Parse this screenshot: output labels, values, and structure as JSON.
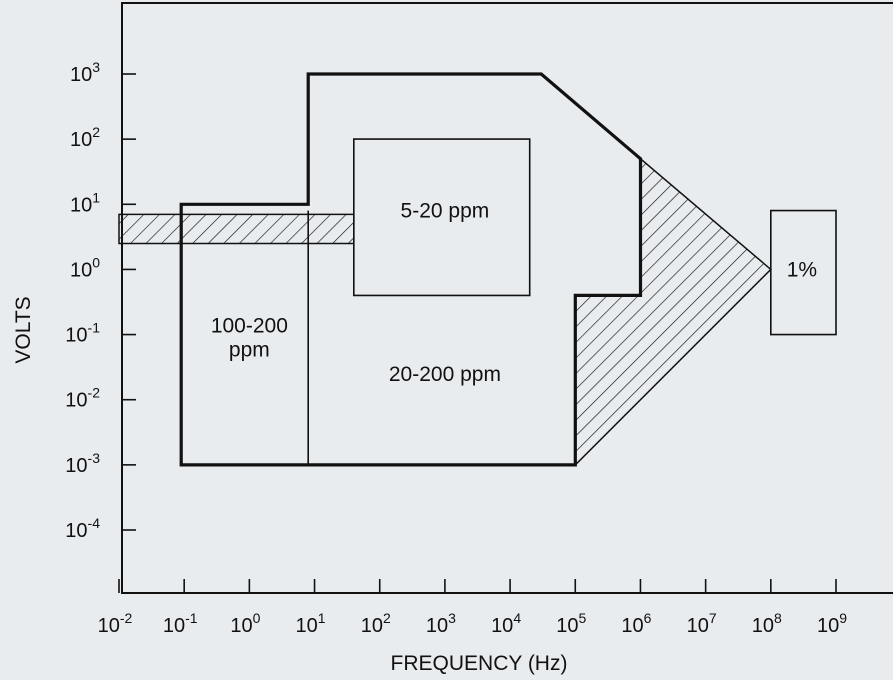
{
  "chart_data": {
    "type": "area",
    "title": "",
    "xlabel": "FREQUENCY (Hz)",
    "ylabel": "VOLTS",
    "xscale": "log",
    "yscale": "log",
    "xlim": [
      0.01,
      1000000000
    ],
    "ylim": [
      0.0001,
      1000
    ],
    "grid": false,
    "x_ticks": [
      {
        "base": "10",
        "exp": "-2"
      },
      {
        "base": "10",
        "exp": "-1"
      },
      {
        "base": "10",
        "exp": "0"
      },
      {
        "base": "10",
        "exp": "1"
      },
      {
        "base": "10",
        "exp": "2"
      },
      {
        "base": "10",
        "exp": "3"
      },
      {
        "base": "10",
        "exp": "4"
      },
      {
        "base": "10",
        "exp": "5"
      },
      {
        "base": "10",
        "exp": "6"
      },
      {
        "base": "10",
        "exp": "7"
      },
      {
        "base": "10",
        "exp": "8"
      },
      {
        "base": "10",
        "exp": "9"
      }
    ],
    "y_ticks": [
      {
        "base": "10",
        "exp": "3"
      },
      {
        "base": "10",
        "exp": "2"
      },
      {
        "base": "10",
        "exp": "1"
      },
      {
        "base": "10",
        "exp": "0"
      },
      {
        "base": "10",
        "exp": "-1"
      },
      {
        "base": "10",
        "exp": "-2"
      },
      {
        "base": "10",
        "exp": "-3"
      },
      {
        "base": "10",
        "exp": "-4"
      }
    ],
    "regions": [
      {
        "name": "outer-boundary",
        "style": "bold",
        "points": [
          [
            0.09,
            0.001
          ],
          [
            0.09,
            10
          ],
          [
            8,
            10
          ],
          [
            8,
            1000
          ],
          [
            30000,
            1000
          ],
          [
            1000000,
            50
          ],
          [
            1000000,
            0.4
          ],
          [
            100000,
            0.4
          ],
          [
            100000,
            0.001
          ]
        ]
      },
      {
        "name": "5-20 ppm",
        "label": "5-20 ppm",
        "style": "box",
        "points": [
          [
            40,
            0.4
          ],
          [
            40,
            100
          ],
          [
            20000,
            100
          ],
          [
            20000,
            0.4
          ]
        ]
      },
      {
        "name": "divider",
        "style": "line",
        "points": [
          [
            8,
            0.001
          ],
          [
            8,
            8
          ]
        ]
      },
      {
        "name": "hatched-band",
        "style": "hatched",
        "points": [
          [
            0.01,
            2.5
          ],
          [
            40,
            2.5
          ],
          [
            40,
            7
          ],
          [
            0.01,
            7
          ]
        ]
      },
      {
        "name": "hatched-wedge",
        "style": "hatched",
        "points": [
          [
            100000,
            0.001
          ],
          [
            100000,
            0.4
          ],
          [
            1000000,
            0.4
          ],
          [
            1000000,
            50
          ],
          [
            100000000,
            1
          ]
        ]
      },
      {
        "name": "1%",
        "label": "1%",
        "style": "box",
        "points": [
          [
            100000000,
            0.1
          ],
          [
            100000000,
            8
          ],
          [
            1000000000,
            8
          ],
          [
            1000000000,
            0.1
          ]
        ]
      }
    ],
    "labels": [
      {
        "name": "5-20 ppm",
        "lines": [
          "5-20 ppm"
        ],
        "x": 1000,
        "y": 8
      },
      {
        "name": "100-200 ppm",
        "lines": [
          "100-200",
          "ppm"
        ],
        "x": 1,
        "y": 0.09
      },
      {
        "name": "20-200 ppm",
        "lines": [
          "20-200 ppm"
        ],
        "x": 1000,
        "y": 0.025
      },
      {
        "name": "1%",
        "lines": [
          "1%"
        ],
        "x": 300000000,
        "y": 1
      }
    ]
  }
}
